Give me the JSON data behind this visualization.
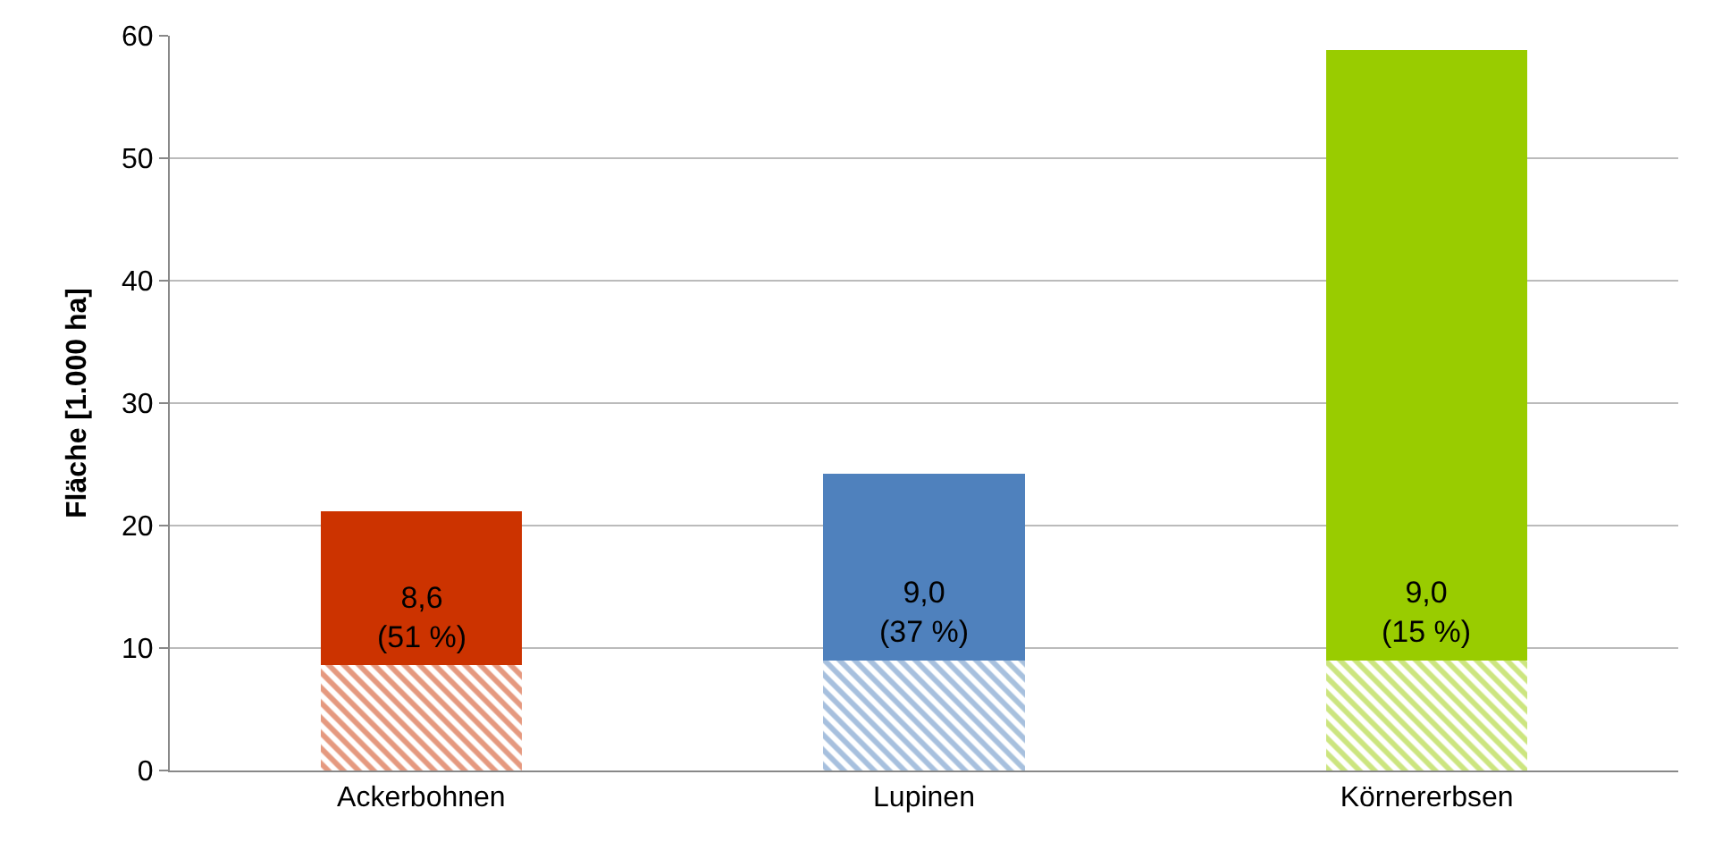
{
  "chart_data": {
    "type": "bar",
    "stacked": true,
    "ylabel": "Fläche [1.000 ha]",
    "categories": [
      "Ackerbohnen",
      "Lupinen",
      "Körnererbsen"
    ],
    "series": [
      {
        "colors": [
          "#cc3300",
          "#4f81bd",
          "#99cc00"
        ],
        "values": [
          8.6,
          9.0,
          9.0
        ],
        "value_labels": [
          "8,6\n(51 %)",
          "9,0\n(37 %)",
          "9,0\n(15 %)"
        ]
      },
      {
        "colors": [
          "#cc3300",
          "#4f81bd",
          "#99cc00"
        ],
        "values": [
          12.6,
          15.2,
          49.8
        ]
      }
    ],
    "ylim": [
      0,
      60
    ],
    "yticks": [
      0,
      10,
      20,
      30,
      40,
      50,
      60
    ],
    "grid": "y"
  }
}
